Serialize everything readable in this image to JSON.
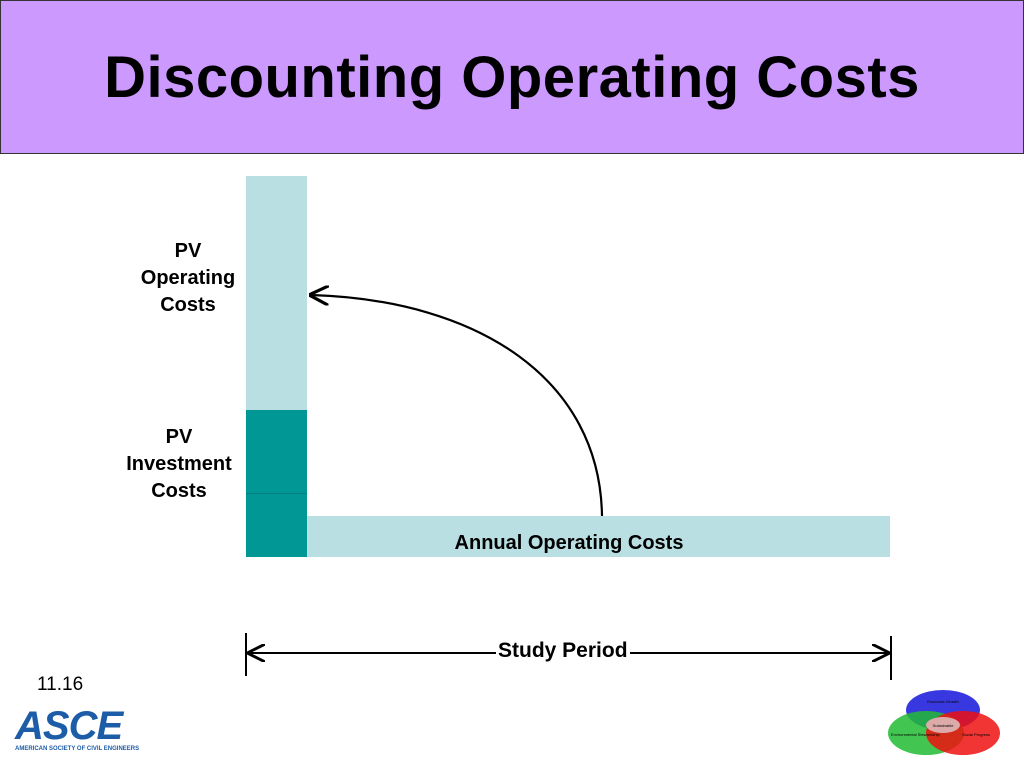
{
  "title": "Discounting Operating Costs",
  "labels": {
    "pv_operating": [
      "PV",
      "Operating",
      "Costs"
    ],
    "pv_investment": [
      "PV",
      "Investment",
      "Costs"
    ],
    "annual_operating": "Annual Operating Costs",
    "study_period": "Study Period"
  },
  "slide_number": "11.16",
  "logo": {
    "text": "ASCE",
    "subtitle": "AMERICAN SOCIETY OF CIVIL ENGINEERS"
  },
  "venn": {
    "top": "Economic Growth",
    "left": "Environmental Stewardship",
    "right": "Social Progress",
    "center": "Sustainable"
  },
  "colors": {
    "title_bg": "#cc99ff",
    "light_bar": "#b9dfe3",
    "dark_bar": "#009794"
  }
}
